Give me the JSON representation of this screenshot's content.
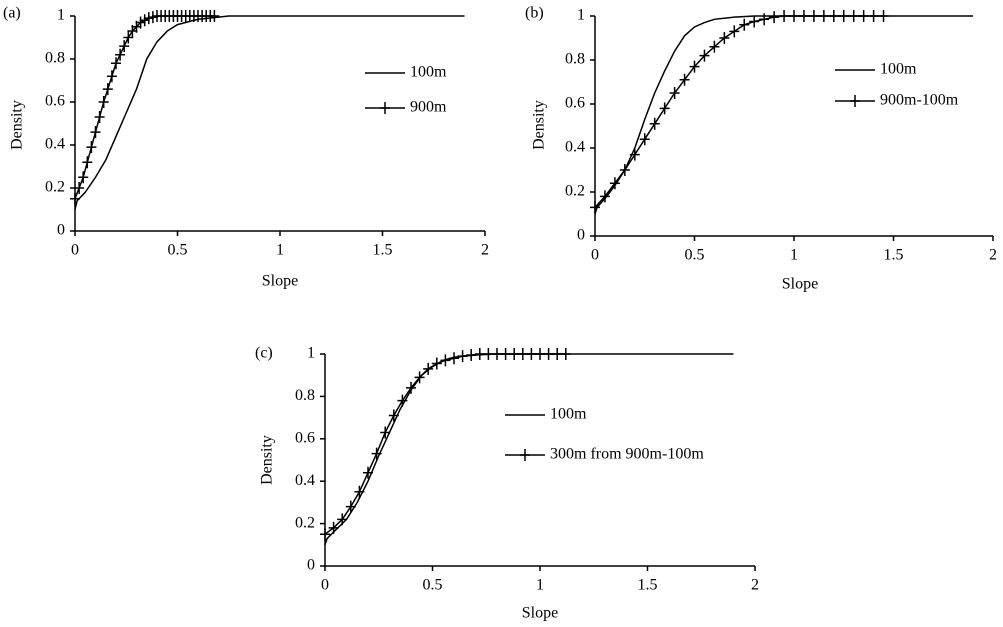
{
  "chart_data": [
    {
      "type": "line",
      "label": "(a)",
      "xlabel": "Slope",
      "ylabel": "Density",
      "xlim": [
        0,
        2
      ],
      "ylim": [
        0,
        1
      ],
      "xticks": [
        0,
        0.5,
        1,
        1.5,
        2
      ],
      "yticks": [
        0,
        0.2,
        0.4,
        0.6,
        0.8,
        1
      ],
      "series": [
        {
          "name": "100m",
          "color": "#000000",
          "marker": "none",
          "x": [
            0,
            0.01,
            0.05,
            0.1,
            0.15,
            0.2,
            0.25,
            0.3,
            0.35,
            0.4,
            0.45,
            0.5,
            0.6,
            0.7,
            0.75,
            1.0,
            1.5,
            1.9
          ],
          "values": [
            0.1,
            0.14,
            0.18,
            0.25,
            0.33,
            0.44,
            0.55,
            0.66,
            0.8,
            0.88,
            0.93,
            0.96,
            0.985,
            0.995,
            1,
            1,
            1,
            1
          ]
        },
        {
          "name": "900m",
          "color": "#000000",
          "marker": "plus",
          "x": [
            0,
            0.02,
            0.04,
            0.06,
            0.08,
            0.1,
            0.12,
            0.14,
            0.16,
            0.18,
            0.2,
            0.22,
            0.24,
            0.26,
            0.28,
            0.3,
            0.32,
            0.34,
            0.36,
            0.38,
            0.4,
            0.42,
            0.44,
            0.46,
            0.48,
            0.5,
            0.52,
            0.54,
            0.56,
            0.58,
            0.6,
            0.62,
            0.64,
            0.66,
            0.68
          ],
          "values": [
            0.15,
            0.2,
            0.25,
            0.32,
            0.39,
            0.46,
            0.53,
            0.6,
            0.66,
            0.72,
            0.78,
            0.82,
            0.86,
            0.9,
            0.93,
            0.95,
            0.97,
            0.98,
            0.99,
            0.995,
            1,
            1,
            1,
            1,
            1,
            1,
            1,
            1,
            1,
            1,
            1,
            1,
            1,
            1,
            1
          ]
        }
      ]
    },
    {
      "type": "line",
      "label": "(b)",
      "xlabel": "Slope",
      "ylabel": "Density",
      "xlim": [
        0,
        2
      ],
      "ylim": [
        0,
        1
      ],
      "xticks": [
        0,
        0.5,
        1,
        1.5,
        2
      ],
      "yticks": [
        0,
        0.2,
        0.4,
        0.6,
        0.8,
        1
      ],
      "series": [
        {
          "name": "100m",
          "color": "#000000",
          "marker": "none",
          "x": [
            0,
            0.01,
            0.05,
            0.1,
            0.15,
            0.2,
            0.25,
            0.3,
            0.35,
            0.4,
            0.45,
            0.5,
            0.55,
            0.6,
            0.7,
            0.8,
            0.9,
            1,
            1.5,
            1.9
          ],
          "values": [
            0.1,
            0.13,
            0.17,
            0.23,
            0.3,
            0.4,
            0.53,
            0.65,
            0.75,
            0.84,
            0.91,
            0.95,
            0.97,
            0.985,
            0.995,
            1,
            1,
            1,
            1,
            1
          ]
        },
        {
          "name": "900m-100m",
          "color": "#000000",
          "marker": "plus",
          "x": [
            0,
            0.05,
            0.1,
            0.15,
            0.2,
            0.25,
            0.3,
            0.35,
            0.4,
            0.45,
            0.5,
            0.55,
            0.6,
            0.65,
            0.7,
            0.75,
            0.8,
            0.85,
            0.9,
            0.95,
            1,
            1.05,
            1.1,
            1.15,
            1.2,
            1.25,
            1.3,
            1.35,
            1.4,
            1.45
          ],
          "values": [
            0.13,
            0.18,
            0.24,
            0.3,
            0.37,
            0.44,
            0.51,
            0.58,
            0.65,
            0.71,
            0.77,
            0.82,
            0.86,
            0.9,
            0.93,
            0.96,
            0.975,
            0.985,
            0.995,
            1,
            1,
            1,
            1,
            1,
            1,
            1,
            1,
            1,
            1,
            1
          ]
        }
      ]
    },
    {
      "type": "line",
      "label": "(c)",
      "xlabel": "Slope",
      "ylabel": "Density",
      "xlim": [
        0,
        2
      ],
      "ylim": [
        0,
        1
      ],
      "xticks": [
        0,
        0.5,
        1,
        1.5,
        2
      ],
      "yticks": [
        0,
        0.2,
        0.4,
        0.6,
        0.8,
        1
      ],
      "series": [
        {
          "name": "100m",
          "color": "#000000",
          "marker": "none",
          "x": [
            0,
            0.01,
            0.05,
            0.1,
            0.15,
            0.2,
            0.25,
            0.3,
            0.35,
            0.4,
            0.45,
            0.5,
            0.55,
            0.6,
            0.7,
            0.8,
            1,
            1.5,
            1.9
          ],
          "values": [
            0.1,
            0.13,
            0.17,
            0.22,
            0.3,
            0.4,
            0.52,
            0.63,
            0.74,
            0.83,
            0.9,
            0.94,
            0.97,
            0.985,
            0.995,
            1,
            1,
            1,
            1
          ]
        },
        {
          "name": "300m from 900m-100m",
          "color": "#000000",
          "marker": "plus",
          "x": [
            0,
            0.04,
            0.08,
            0.12,
            0.16,
            0.2,
            0.24,
            0.28,
            0.32,
            0.36,
            0.4,
            0.44,
            0.48,
            0.52,
            0.56,
            0.6,
            0.64,
            0.68,
            0.72,
            0.76,
            0.8,
            0.84,
            0.88,
            0.92,
            0.96,
            1,
            1.04,
            1.08,
            1.12
          ],
          "values": [
            0.15,
            0.18,
            0.22,
            0.28,
            0.35,
            0.44,
            0.53,
            0.63,
            0.71,
            0.78,
            0.84,
            0.89,
            0.93,
            0.955,
            0.97,
            0.98,
            0.99,
            0.995,
            1,
            1,
            1,
            1,
            1,
            1,
            1,
            1,
            1,
            1,
            1
          ]
        }
      ]
    }
  ]
}
